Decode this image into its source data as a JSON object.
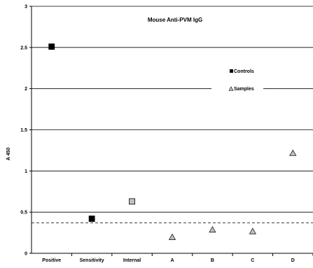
{
  "chart_data": {
    "type": "scatter",
    "title": "Mouse Anti-PVM IgG",
    "xlabel": "",
    "ylabel": "A 450",
    "categories": [
      "Positive",
      "Sensitivity",
      "Internal",
      "A",
      "B",
      "C",
      "D"
    ],
    "ylim": [
      0,
      3
    ],
    "yticks": [
      "0",
      "0.5",
      "1",
      "1.5",
      "2",
      "2.5",
      "3"
    ],
    "grid": true,
    "legend_position": "right",
    "series": [
      {
        "name": "Controls",
        "marker": "square",
        "color": "#000000",
        "points": [
          {
            "category": "Positive",
            "y": 2.51
          },
          {
            "category": "Sensitivity",
            "y": 0.42
          }
        ]
      },
      {
        "marker": "square",
        "color": "#c0c0c0",
        "points": [
          {
            "category": "Internal",
            "y": 0.63
          }
        ]
      },
      {
        "name": "Samples",
        "marker": "triangle",
        "color": "#c0c0c0",
        "points": [
          {
            "category": "A",
            "y": 0.2
          },
          {
            "category": "B",
            "y": 0.29
          },
          {
            "category": "C",
            "y": 0.27
          },
          {
            "category": "D",
            "y": 1.22
          }
        ]
      }
    ],
    "cutoff": {
      "y": 0.37,
      "style": "dashed"
    }
  }
}
